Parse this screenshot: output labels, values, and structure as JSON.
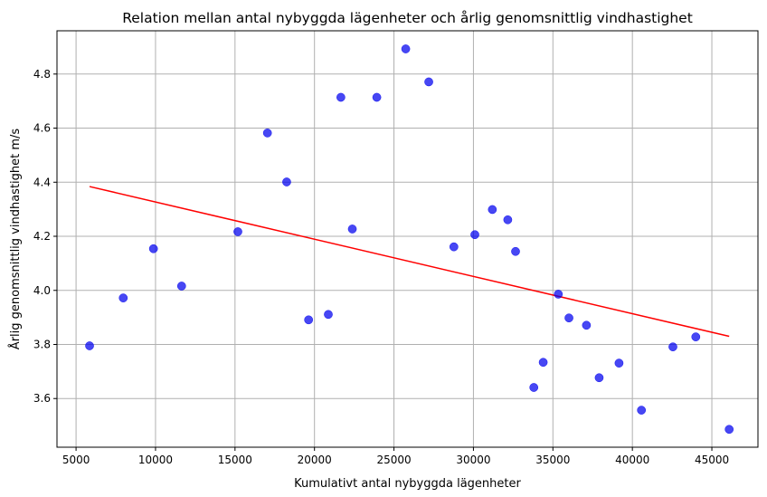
{
  "chart_data": {
    "type": "scatter",
    "title": "Relation mellan antal nybyggda lägenheter och årlig genomsnittlig vindhastighet",
    "xlabel": "Kumulativt antal nybyggda lägenheter",
    "ylabel": "Årlig genomsnittlig vindhastighet m/s",
    "xlim": [
      3800,
      47900
    ],
    "ylim": [
      3.42,
      4.96
    ],
    "x_ticks": [
      5000,
      10000,
      15000,
      20000,
      25000,
      30000,
      35000,
      40000,
      45000
    ],
    "x_tick_labels": [
      "5000",
      "10000",
      "15000",
      "20000",
      "25000",
      "30000",
      "35000",
      "40000",
      "45000"
    ],
    "y_ticks": [
      3.6,
      3.8,
      4.0,
      4.2,
      4.4,
      4.6,
      4.8
    ],
    "y_tick_labels": [
      "3.6",
      "3.8",
      "4.0",
      "4.2",
      "4.4",
      "4.6",
      "4.8"
    ],
    "grid": true,
    "series": [
      {
        "marker_color": "#0000ee",
        "points": [
          {
            "x": 5850,
            "y": 3.795
          },
          {
            "x": 7970,
            "y": 3.972
          },
          {
            "x": 9870,
            "y": 4.154
          },
          {
            "x": 11640,
            "y": 4.016
          },
          {
            "x": 15180,
            "y": 4.217
          },
          {
            "x": 17040,
            "y": 4.582
          },
          {
            "x": 18250,
            "y": 4.401
          },
          {
            "x": 19630,
            "y": 3.891
          },
          {
            "x": 20870,
            "y": 3.911
          },
          {
            "x": 21660,
            "y": 4.714
          },
          {
            "x": 22380,
            "y": 4.227
          },
          {
            "x": 23920,
            "y": 4.714
          },
          {
            "x": 25740,
            "y": 4.893
          },
          {
            "x": 27190,
            "y": 4.771
          },
          {
            "x": 28770,
            "y": 4.161
          },
          {
            "x": 30090,
            "y": 4.206
          },
          {
            "x": 31190,
            "y": 4.299
          },
          {
            "x": 32160,
            "y": 4.261
          },
          {
            "x": 32650,
            "y": 4.144
          },
          {
            "x": 33800,
            "y": 3.641
          },
          {
            "x": 34390,
            "y": 3.734
          },
          {
            "x": 35340,
            "y": 3.986
          },
          {
            "x": 36010,
            "y": 3.898
          },
          {
            "x": 37110,
            "y": 3.871
          },
          {
            "x": 37910,
            "y": 3.677
          },
          {
            "x": 39160,
            "y": 3.731
          },
          {
            "x": 40570,
            "y": 3.557
          },
          {
            "x": 42550,
            "y": 3.791
          },
          {
            "x": 43990,
            "y": 3.828
          },
          {
            "x": 46090,
            "y": 3.486
          }
        ]
      }
    ],
    "trend_line": {
      "color": "#ff0000",
      "points": [
        {
          "x": 5850,
          "y": 4.384
        },
        {
          "x": 46090,
          "y": 3.83
        }
      ]
    }
  }
}
